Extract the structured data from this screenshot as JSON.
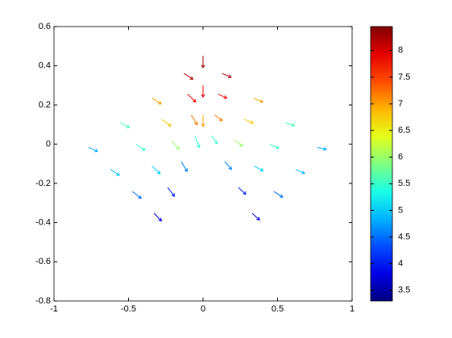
{
  "chart_data": {
    "type": "quiver",
    "x": [
      -0.128,
      -0.341,
      -0.554,
      -0.767,
      -0.104,
      -0.276,
      -0.449,
      -0.621,
      -0.079,
      -0.211,
      -0.343,
      -0.475,
      -0.055,
      -0.146,
      -0.237,
      -0.329,
      0.128,
      0.341,
      0.554,
      0.767,
      0.104,
      0.276,
      0.449,
      0.621,
      0.079,
      0.211,
      0.343,
      0.475,
      0.055,
      0.146,
      0.237,
      0.329,
      0,
      0,
      0
    ],
    "y": [
      0.361,
      0.235,
      0.109,
      -0.017,
      0.255,
      0.127,
      -0.001,
      -0.129,
      0.149,
      0.019,
      -0.111,
      -0.241,
      0.043,
      -0.089,
      -0.221,
      -0.352,
      0.361,
      0.235,
      0.109,
      -0.017,
      0.255,
      0.127,
      -0.001,
      -0.129,
      0.149,
      0.019,
      -0.111,
      -0.241,
      0.043,
      -0.089,
      -0.221,
      -0.352,
      0.45,
      0.3,
      0.15
    ],
    "u": [
      0.06,
      0.06,
      0.06,
      0.06,
      0.055,
      0.06,
      0.06,
      0.06,
      0.04,
      0.05,
      0.055,
      0.06,
      0.03,
      0.04,
      0.045,
      0.05,
      0.06,
      0.06,
      0.06,
      0.06,
      0.055,
      0.06,
      0.06,
      0.06,
      0.05,
      0.055,
      0.06,
      0.06,
      0.04,
      0.045,
      0.05,
      0.05,
      0,
      0,
      0
    ],
    "v": [
      -0.03,
      -0.03,
      -0.025,
      -0.02,
      -0.04,
      -0.035,
      -0.03,
      -0.03,
      -0.05,
      -0.045,
      -0.04,
      -0.035,
      -0.06,
      -0.05,
      -0.045,
      -0.04,
      -0.02,
      -0.02,
      -0.015,
      -0.01,
      -0.02,
      -0.02,
      -0.02,
      -0.02,
      -0.03,
      -0.03,
      -0.025,
      -0.03,
      -0.04,
      -0.04,
      -0.035,
      -0.035,
      -0.06,
      -0.06,
      -0.06
    ],
    "c": [
      8.2,
      7.0,
      5.6,
      4.8,
      7.8,
      6.8,
      5.5,
      4.9,
      7.2,
      6.0,
      5.0,
      4.5,
      5.5,
      4.6,
      4.1,
      3.8,
      8.2,
      7.0,
      5.6,
      4.8,
      7.8,
      6.8,
      5.5,
      4.9,
      7.2,
      6.0,
      5.0,
      4.5,
      5.5,
      4.6,
      4.1,
      3.8,
      8.3,
      7.9,
      7.0
    ],
    "xlim": [
      -1,
      1
    ],
    "xticks": [
      -1,
      -0.5,
      0,
      0.5,
      1
    ],
    "ylim": [
      -0.8,
      0.6
    ],
    "yticks": [
      -0.8,
      -0.6,
      -0.4,
      -0.2,
      0,
      0.2,
      0.4,
      0.6
    ],
    "colorbar": {
      "clim": [
        3.3,
        8.45
      ],
      "ticks": [
        3.5,
        4,
        4.5,
        5,
        5.5,
        6,
        6.5,
        7,
        7.5,
        8
      ]
    }
  }
}
